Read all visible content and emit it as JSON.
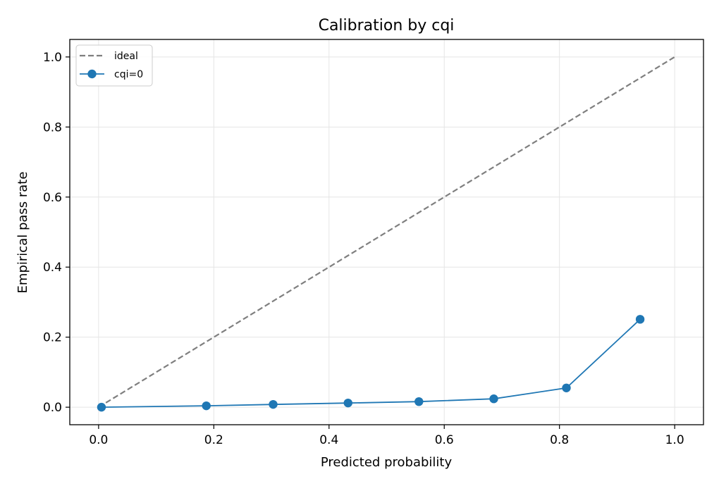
{
  "chart_data": {
    "type": "line",
    "title": "Calibration by cqi",
    "xlabel": "Predicted probability",
    "ylabel": "Empirical pass rate",
    "xlim": [
      -0.05,
      1.05
    ],
    "ylim": [
      -0.05,
      1.05
    ],
    "xticks": [
      0.0,
      0.2,
      0.4,
      0.6,
      0.8,
      1.0
    ],
    "xtick_labels": [
      "0.0",
      "0.2",
      "0.4",
      "0.6",
      "0.8",
      "1.0"
    ],
    "yticks": [
      0.0,
      0.2,
      0.4,
      0.6,
      0.8,
      1.0
    ],
    "ytick_labels": [
      "0.0",
      "0.2",
      "0.4",
      "0.6",
      "0.8",
      "1.0"
    ],
    "grid": true,
    "legend_position": "top-left",
    "series": [
      {
        "name": "ideal",
        "style": "dashed",
        "color": "#7f7f7f",
        "markers": false,
        "x": [
          0.0,
          1.0
        ],
        "y": [
          0.0,
          1.0
        ]
      },
      {
        "name": "cqi=0",
        "style": "solid",
        "color": "#1f77b4",
        "markers": true,
        "x": [
          0.005,
          0.187,
          0.303,
          0.433,
          0.556,
          0.686,
          0.812,
          0.94
        ],
        "y": [
          0.0,
          0.004,
          0.008,
          0.012,
          0.016,
          0.024,
          0.055,
          0.251
        ]
      }
    ]
  }
}
